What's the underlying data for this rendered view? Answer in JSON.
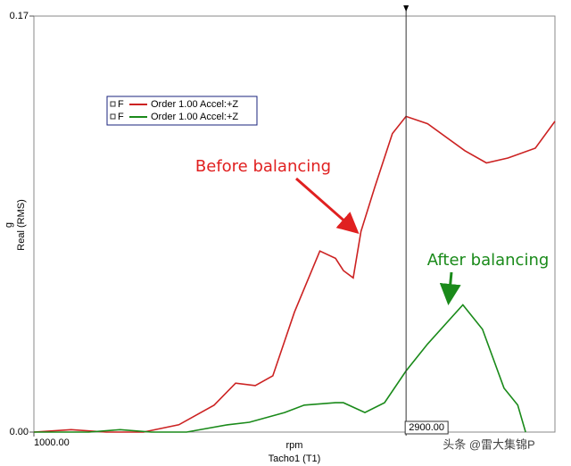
{
  "chart_data": {
    "type": "line",
    "y_unit": "g",
    "y_label": "Real (RMS)",
    "x_unit": "rpm",
    "x_label": "Tacho1 (T1)",
    "xlim": [
      1000,
      3660
    ],
    "ylim": [
      0,
      0.17
    ],
    "xticks": [
      {
        "value": 1000,
        "label": "1000.00"
      }
    ],
    "yticks": [
      {
        "value": 0,
        "label": "0.00"
      },
      {
        "value": 0.17,
        "label": "0.17"
      }
    ],
    "cursor": {
      "value": 2900,
      "label": "2900.00"
    },
    "annotations": [
      "Before balancing",
      "After balancing"
    ],
    "watermark": "头条 @雷大集锦P",
    "series": [
      {
        "channel": "F",
        "name": "Order 1.00 Accel:+Z",
        "color": "#cc2222",
        "x": [
          1000,
          1190,
          1370,
          1560,
          1740,
          1920,
          2030,
          2130,
          2220,
          2330,
          2460,
          2540,
          2580,
          2630,
          2670,
          2740,
          2830,
          2900,
          3010,
          3200,
          3310,
          3420,
          3560,
          3660
        ],
        "values": [
          0.0,
          0.001,
          0.0,
          0.0,
          0.003,
          0.011,
          0.02,
          0.019,
          0.023,
          0.049,
          0.074,
          0.071,
          0.066,
          0.063,
          0.082,
          0.1,
          0.122,
          0.129,
          0.126,
          0.115,
          0.11,
          0.112,
          0.116,
          0.127
        ]
      },
      {
        "channel": "F",
        "name": "Order 1.00 Accel:+Z",
        "color": "#1a8a1a",
        "x": [
          1000,
          1280,
          1440,
          1600,
          1780,
          1990,
          2100,
          2280,
          2380,
          2540,
          2580,
          2690,
          2790,
          2900,
          3010,
          3190,
          3290,
          3400,
          3470,
          3510
        ],
        "values": [
          0.0,
          0.0,
          0.001,
          0.0,
          0.0,
          0.003,
          0.004,
          0.008,
          0.011,
          0.012,
          0.012,
          0.008,
          0.012,
          0.025,
          0.036,
          0.052,
          0.042,
          0.018,
          0.011,
          0.0
        ]
      }
    ]
  }
}
